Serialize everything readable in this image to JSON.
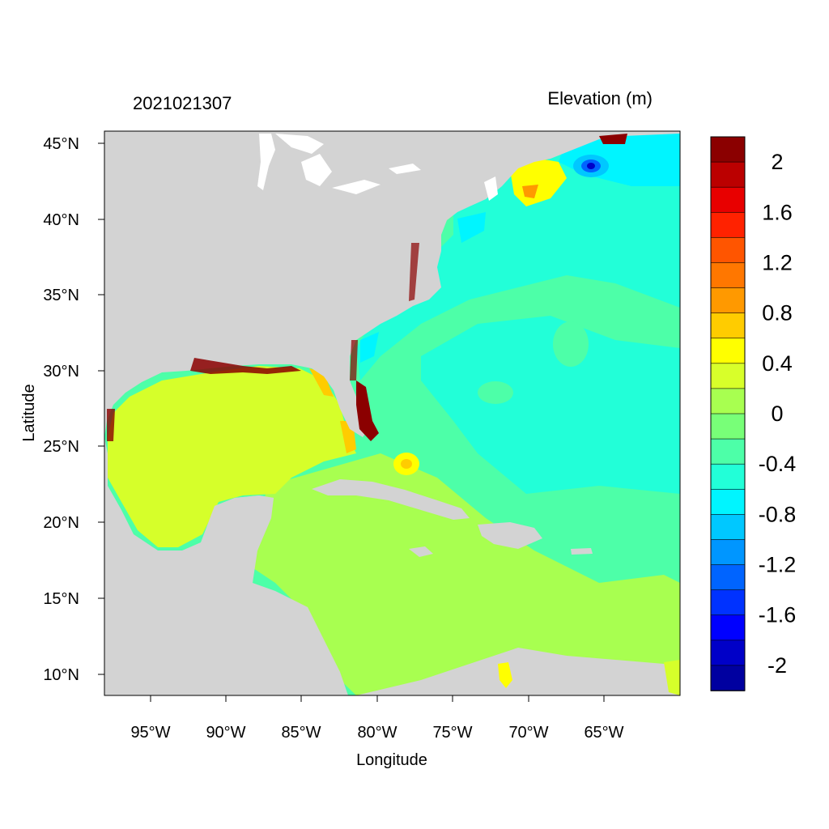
{
  "header": {
    "timestamp": "2021021307",
    "variable_label": "Elevation (m)"
  },
  "axes": {
    "x_label": "Longitude",
    "y_label": "Latitude",
    "x_ticks": [
      "95°W",
      "90°W",
      "85°W",
      "80°W",
      "75°W",
      "70°W",
      "65°W"
    ],
    "y_ticks": [
      "45°N",
      "40°N",
      "35°N",
      "30°N",
      "25°N",
      "20°N",
      "15°N",
      "10°N"
    ]
  },
  "colorbar": {
    "labels": [
      "2",
      "1.6",
      "1.2",
      "0.8",
      "0.4",
      "0",
      "-0.4",
      "-0.8",
      "-1.2",
      "-1.6",
      "-2"
    ],
    "colors": [
      "#8b0000",
      "#bb0000",
      "#e80000",
      "#ff2200",
      "#ff5500",
      "#ff7700",
      "#ff9900",
      "#ffcc00",
      "#ffff00",
      "#d8ff2a",
      "#a8ff50",
      "#78ff78",
      "#4dffa8",
      "#22ffd8",
      "#00f5ff",
      "#00c8ff",
      "#0096ff",
      "#0064ff",
      "#0032ff",
      "#0000ff",
      "#0000c8",
      "#0000a0"
    ]
  },
  "map_colors": {
    "land": "#d3d3d3",
    "lakes": "#ffffff",
    "gulf": "#d6ff2a",
    "caribbean": "#a8ff50",
    "atlantic": "#4dffa8",
    "shelf": "#22ffd8",
    "surge_high": "#8b0000"
  }
}
